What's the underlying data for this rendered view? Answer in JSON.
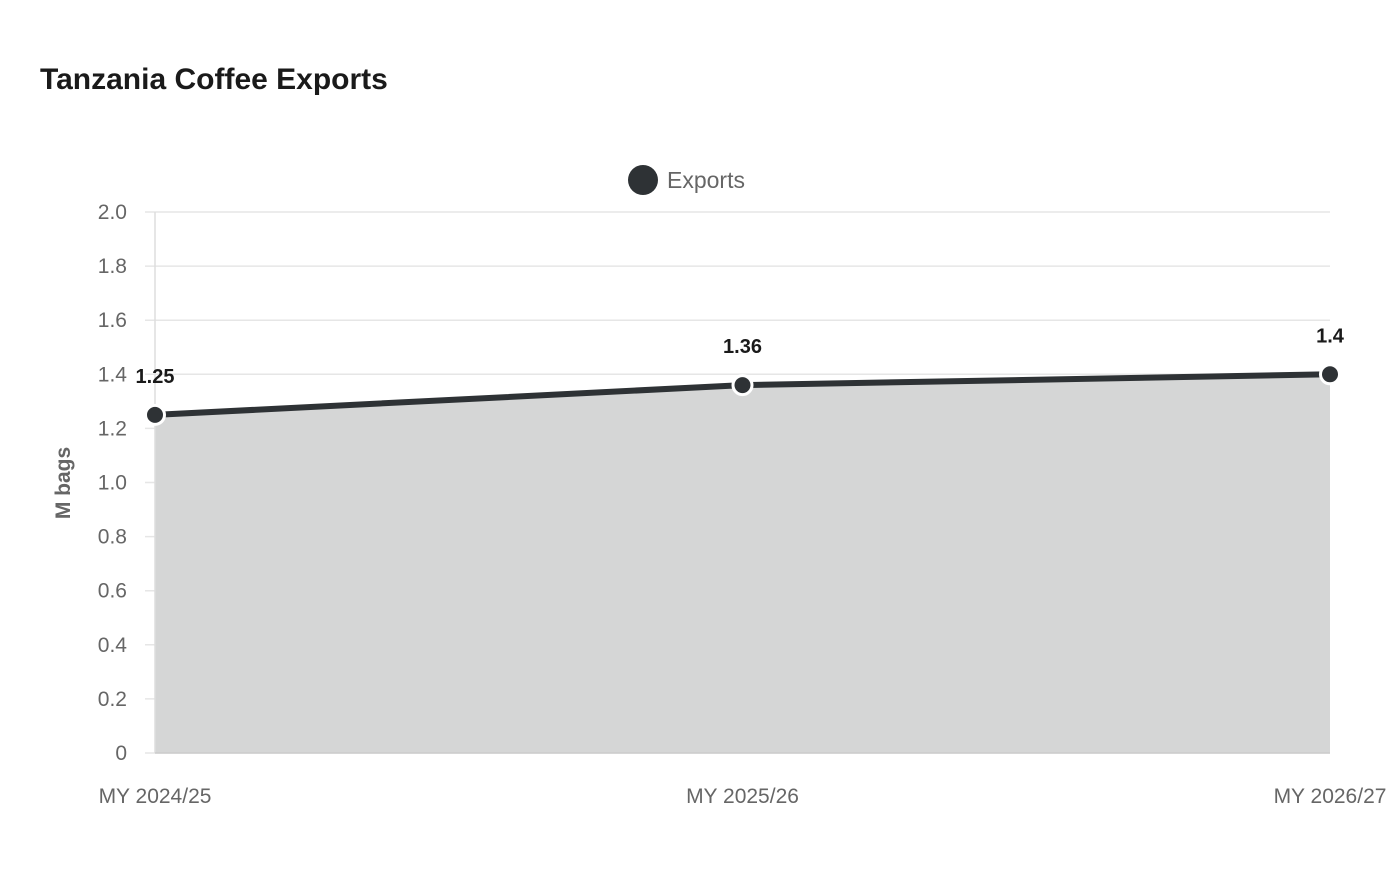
{
  "chart_data": {
    "type": "area",
    "title": "Tanzania Coffee Exports",
    "xlabel": "",
    "ylabel": "M bags",
    "categories": [
      "MY 2024/25",
      "MY 2025/26",
      "MY 2026/27"
    ],
    "series": [
      {
        "name": "Exports",
        "values": [
          1.25,
          1.36,
          1.4
        ]
      }
    ],
    "ylim": [
      0,
      2.0
    ],
    "yticks": [
      "0",
      "0.2",
      "0.4",
      "0.6",
      "0.8",
      "1.0",
      "1.2",
      "1.4",
      "1.6",
      "1.8",
      "2.0"
    ],
    "grid": true,
    "legend_position": "top-center",
    "data_labels": true,
    "colors": {
      "line": "#2e3235",
      "fill": "#d5d6d6",
      "grid": "#e6e6e6",
      "point_stroke": "#ffffff"
    }
  }
}
